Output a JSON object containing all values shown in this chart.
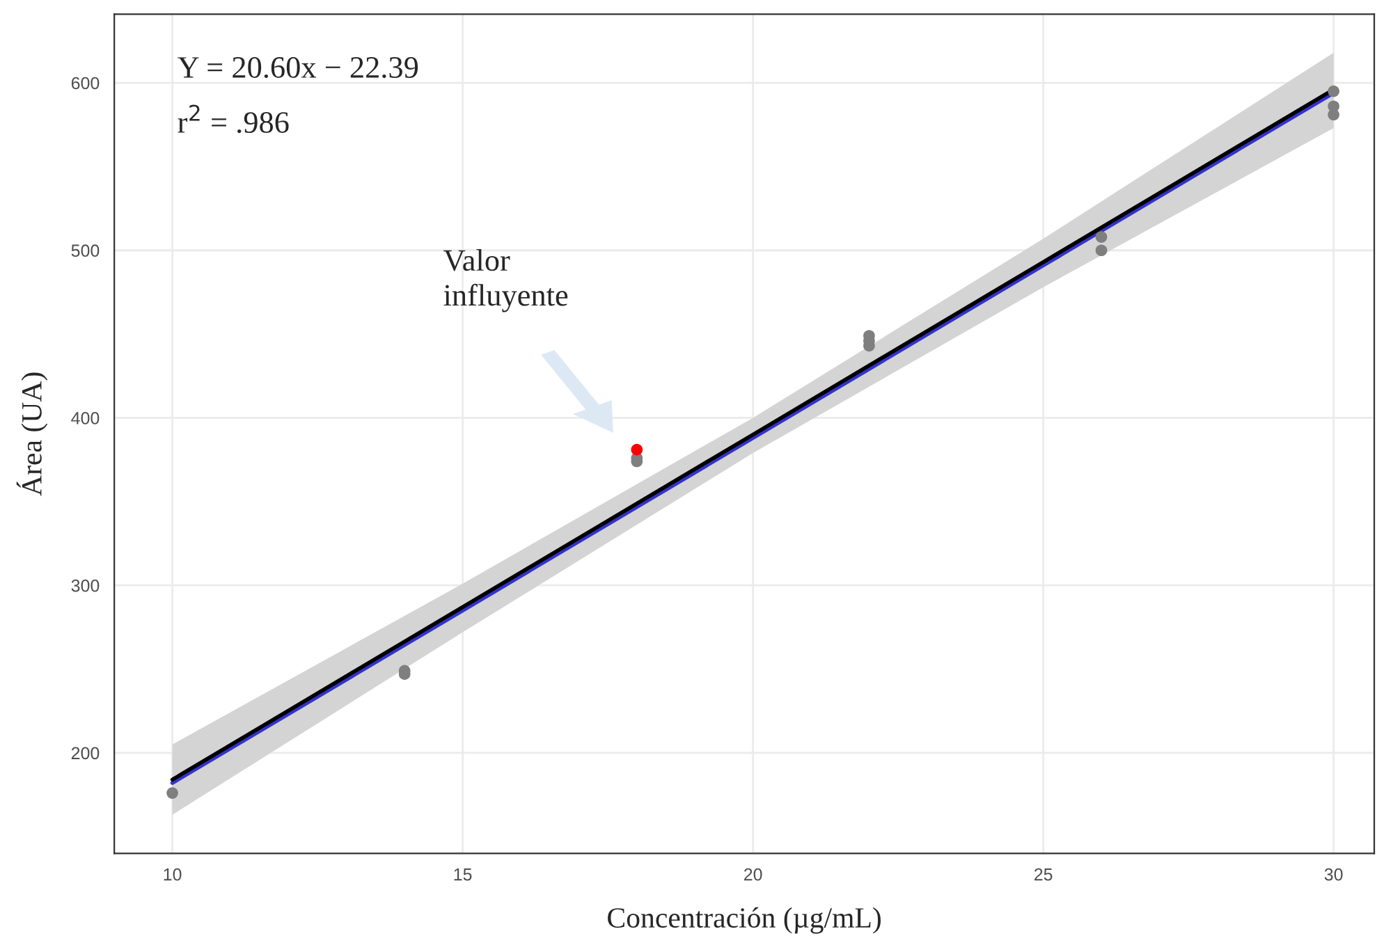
{
  "chart_data": {
    "type": "scatter",
    "xlabel": "Concentración (µg/mL)",
    "ylabel": "Área (UA)",
    "xlim": [
      9,
      30.7
    ],
    "ylim": [
      140,
      641
    ],
    "xticks": [
      10,
      15,
      20,
      25,
      30
    ],
    "yticks": [
      200,
      300,
      400,
      500,
      600
    ],
    "grid": true,
    "legend": false,
    "series": [
      {
        "type": "line",
        "color": "#3333cc",
        "x": [
          10,
          15,
          20,
          25,
          30
        ],
        "values": [
          182,
          285,
          388,
          491,
          594
        ]
      },
      {
        "type": "line",
        "color": "#000000",
        "x": [
          10,
          15,
          20,
          25,
          30
        ],
        "values": [
          184,
          287,
          390,
          493,
          596
        ],
        "lower": [
          163,
          272,
          379,
          478,
          573
        ],
        "upper": [
          205,
          301,
          400,
          507,
          618
        ]
      },
      {
        "color": "#7f7f7f",
        "marker": "circle",
        "x": [
          10,
          14,
          14,
          18,
          18,
          22,
          22,
          22,
          26,
          26,
          30,
          30,
          30
        ],
        "values": [
          176,
          247,
          249,
          374,
          376,
          443,
          446,
          449,
          500,
          508,
          581,
          586,
          595
        ]
      },
      {
        "color": "#ff0000",
        "marker": "circle",
        "x": [
          18
        ],
        "values": [
          381
        ]
      }
    ],
    "annotations": [
      "Y = 20.60x − 22.39",
      "r$^{2}$ = .986",
      "Valor\ninfluyente"
    ]
  }
}
